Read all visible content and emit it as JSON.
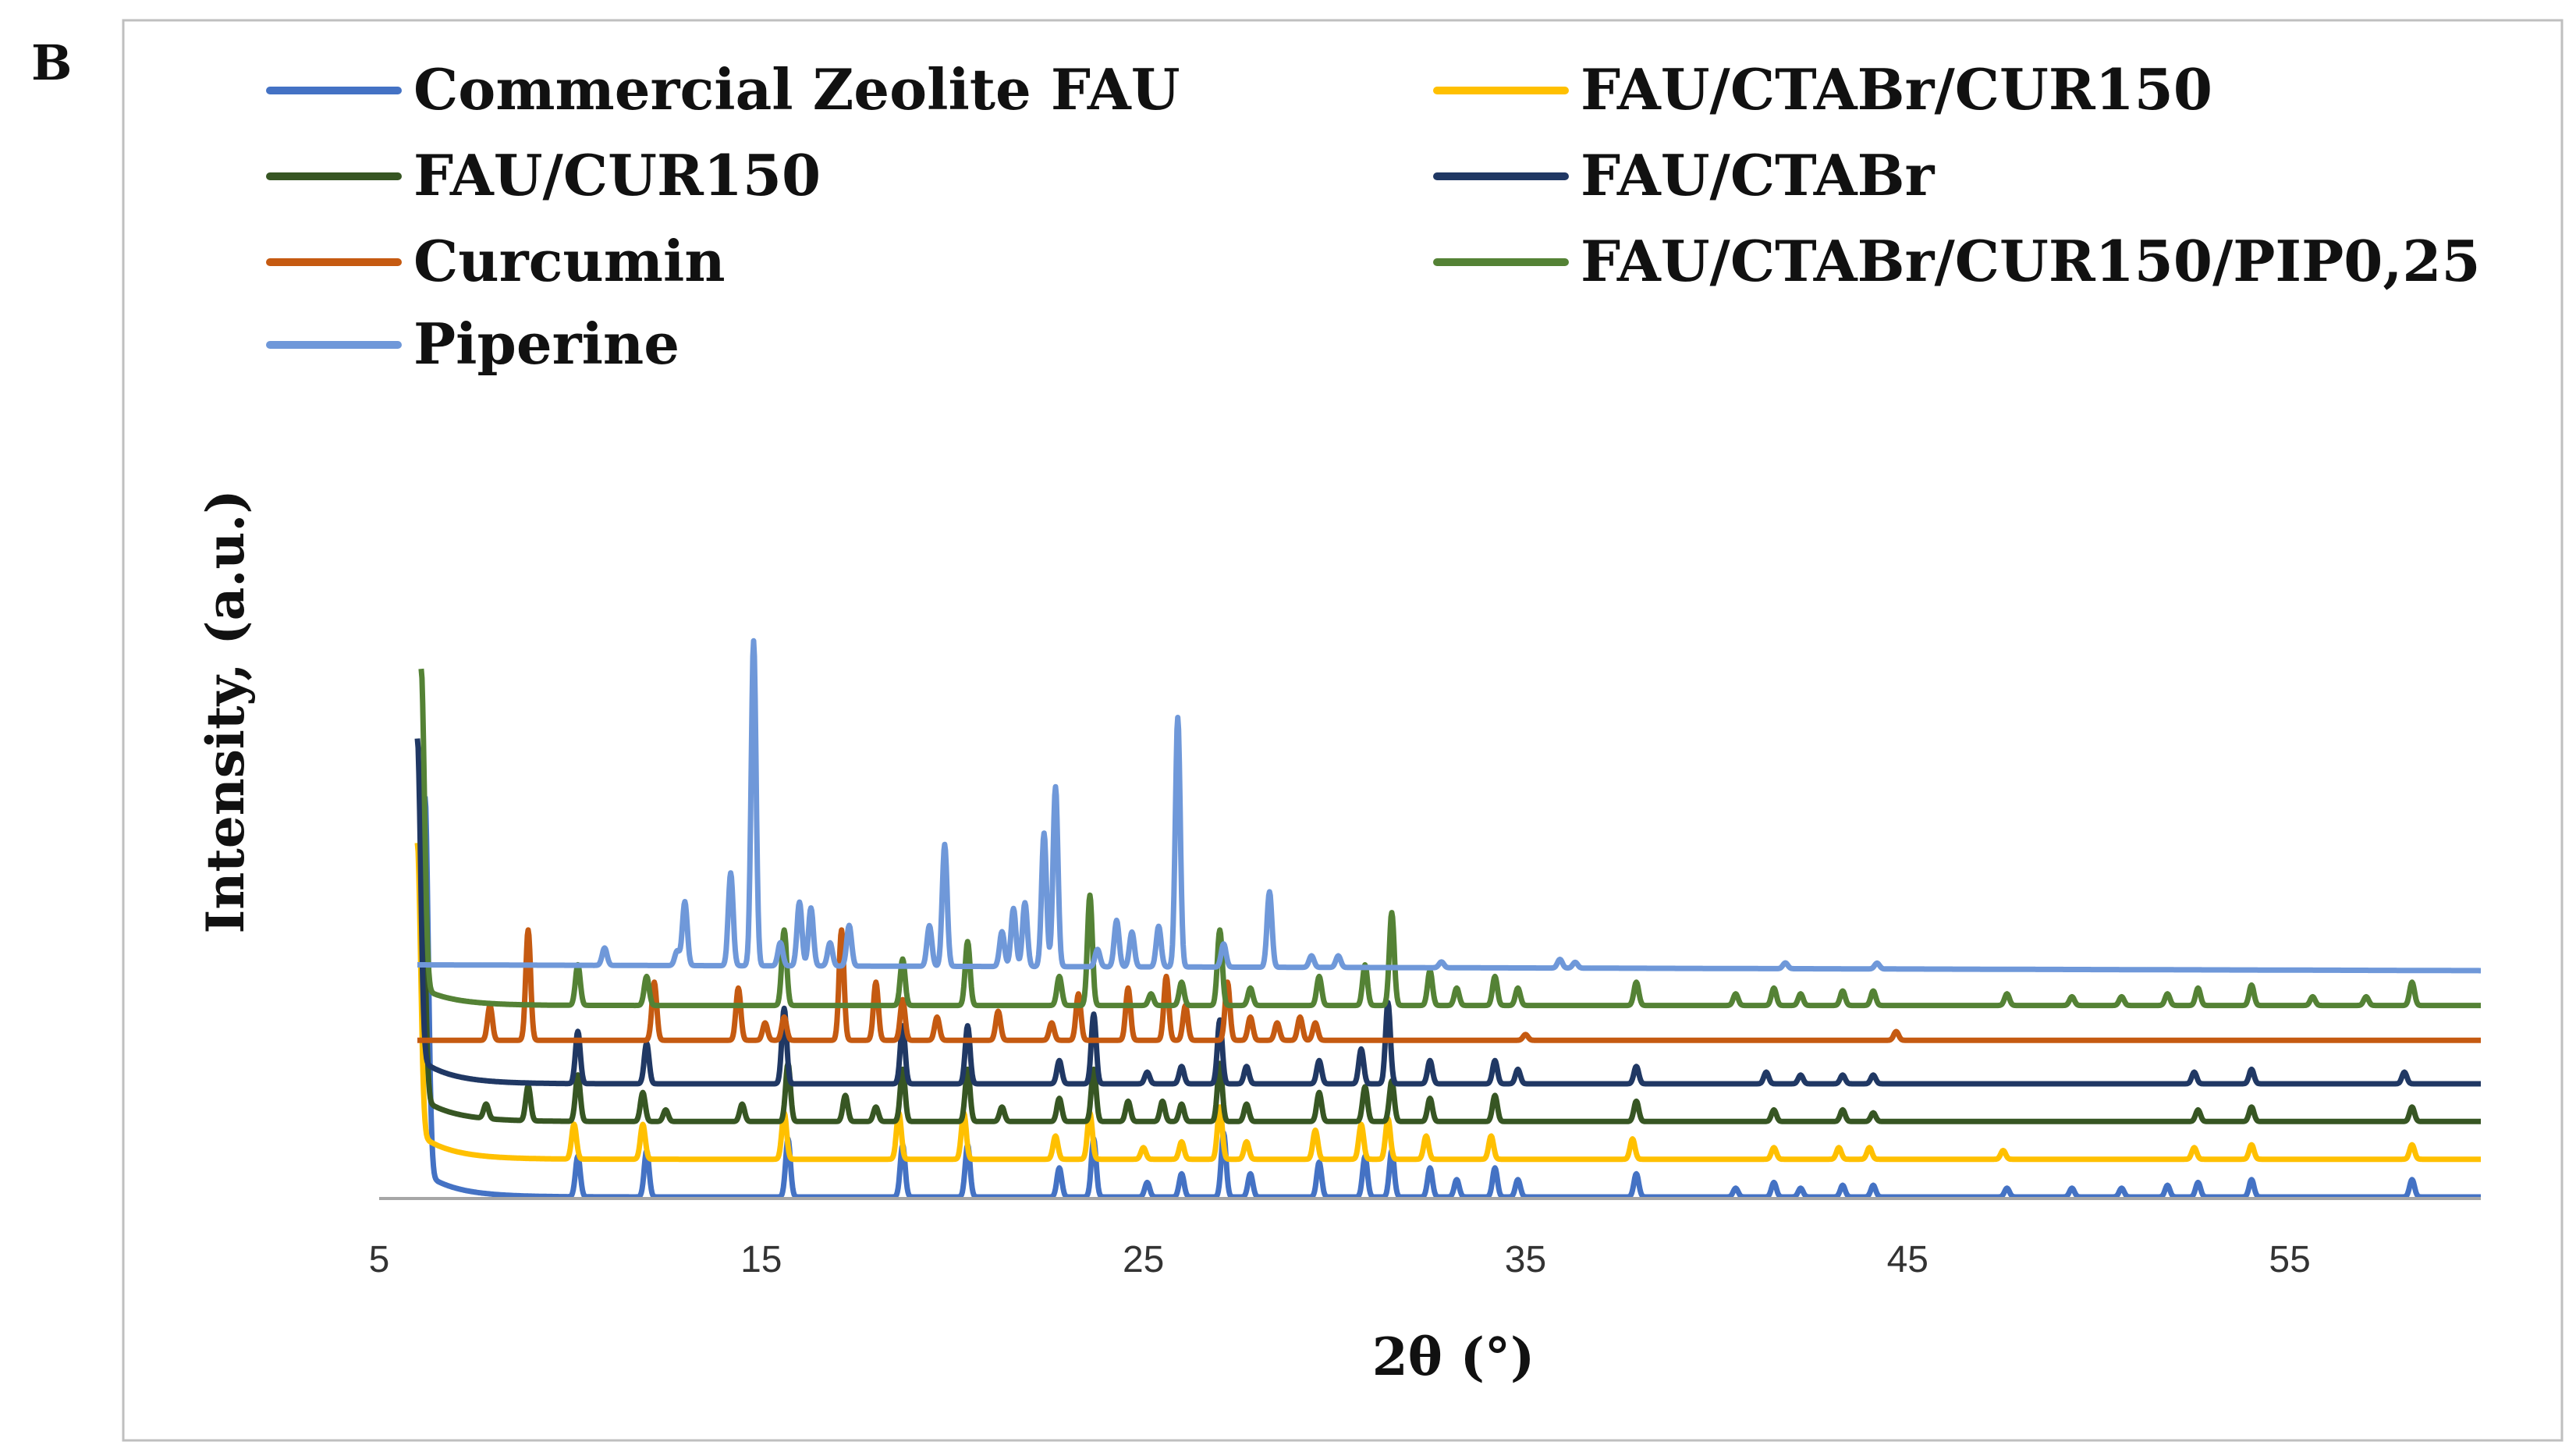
{
  "panel_label": "B",
  "chart_data": {
    "type": "line",
    "xlabel": "2θ (°)",
    "ylabel": "Intensity, (a.u.)",
    "xlim": [
      5,
      60
    ],
    "ylim": [
      0,
      13.5
    ],
    "xticks": [
      5,
      15,
      25,
      35,
      45,
      55
    ],
    "y_ticks_shown": false,
    "grid": false,
    "legend_position": "top",
    "legend_columns": 2,
    "series": [
      {
        "name": "Commercial Zeolite FAU",
        "color": "#4472C4",
        "offset": 0,
        "start_x": 6.2,
        "baseline_start": 0.4,
        "baseline_end": 0,
        "start_spike": 6.5,
        "peaks": [
          [
            10.2,
            0.7
          ],
          [
            12.0,
            0.8
          ],
          [
            15.7,
            1.0
          ],
          [
            18.7,
            0.9
          ],
          [
            20.4,
            0.9
          ],
          [
            22.8,
            0.5
          ],
          [
            23.7,
            1.0
          ],
          [
            25.1,
            0.25
          ],
          [
            26.0,
            0.4
          ],
          [
            27.1,
            1.1
          ],
          [
            27.8,
            0.4
          ],
          [
            29.6,
            0.6
          ],
          [
            30.8,
            0.7
          ],
          [
            31.5,
            0.8
          ],
          [
            32.5,
            0.5
          ],
          [
            33.2,
            0.3
          ],
          [
            34.2,
            0.5
          ],
          [
            34.8,
            0.3
          ],
          [
            37.9,
            0.4
          ],
          [
            40.5,
            0.15
          ],
          [
            41.5,
            0.25
          ],
          [
            42.2,
            0.15
          ],
          [
            43.3,
            0.2
          ],
          [
            44.1,
            0.2
          ],
          [
            47.6,
            0.15
          ],
          [
            49.3,
            0.15
          ],
          [
            50.6,
            0.15
          ],
          [
            51.8,
            0.2
          ],
          [
            52.6,
            0.25
          ],
          [
            54.0,
            0.3
          ],
          [
            58.2,
            0.3
          ]
        ]
      },
      {
        "name": "FAU/CTABr/CUR150",
        "color": "#FFC000",
        "offset": 0.65,
        "start_x": 6.0,
        "baseline_start": 0.45,
        "baseline_end": 0,
        "start_spike": 5.0,
        "peaks": [
          [
            10.1,
            0.6
          ],
          [
            11.9,
            0.6
          ],
          [
            15.6,
            0.8
          ],
          [
            18.6,
            0.8
          ],
          [
            20.3,
            0.8
          ],
          [
            22.7,
            0.4
          ],
          [
            23.6,
            0.8
          ],
          [
            25.0,
            0.2
          ],
          [
            26.0,
            0.3
          ],
          [
            27.0,
            0.9
          ],
          [
            27.7,
            0.3
          ],
          [
            29.5,
            0.5
          ],
          [
            30.7,
            0.6
          ],
          [
            31.4,
            0.7
          ],
          [
            32.4,
            0.4
          ],
          [
            34.1,
            0.4
          ],
          [
            37.8,
            0.35
          ],
          [
            41.5,
            0.2
          ],
          [
            43.2,
            0.2
          ],
          [
            44.0,
            0.2
          ],
          [
            47.5,
            0.15
          ],
          [
            52.5,
            0.2
          ],
          [
            54.0,
            0.25
          ],
          [
            58.2,
            0.25
          ]
        ]
      },
      {
        "name": "FAU/CUR150",
        "color": "#375623",
        "offset": 1.3,
        "start_x": 6.1,
        "baseline_start": 0.4,
        "baseline_end": 0,
        "start_spike": 5.6,
        "peaks": [
          [
            7.8,
            0.25
          ],
          [
            8.9,
            0.6
          ],
          [
            10.2,
            0.8
          ],
          [
            11.9,
            0.5
          ],
          [
            12.5,
            0.2
          ],
          [
            14.5,
            0.3
          ],
          [
            15.7,
            1.0
          ],
          [
            17.2,
            0.45
          ],
          [
            18.0,
            0.25
          ],
          [
            18.7,
            0.9
          ],
          [
            20.4,
            0.9
          ],
          [
            21.3,
            0.25
          ],
          [
            22.8,
            0.4
          ],
          [
            23.7,
            0.9
          ],
          [
            24.6,
            0.35
          ],
          [
            25.5,
            0.35
          ],
          [
            26.0,
            0.3
          ],
          [
            27.0,
            1.0
          ],
          [
            27.7,
            0.3
          ],
          [
            29.6,
            0.5
          ],
          [
            30.8,
            0.6
          ],
          [
            31.5,
            0.7
          ],
          [
            32.5,
            0.4
          ],
          [
            34.2,
            0.45
          ],
          [
            37.9,
            0.35
          ],
          [
            41.5,
            0.2
          ],
          [
            43.3,
            0.2
          ],
          [
            44.1,
            0.15
          ],
          [
            52.6,
            0.2
          ],
          [
            54.0,
            0.25
          ],
          [
            58.2,
            0.25
          ]
        ]
      },
      {
        "name": "FAU/CTABr",
        "color": "#203864",
        "offset": 1.95,
        "start_x": 6.0,
        "baseline_start": 0.45,
        "baseline_end": 0,
        "start_spike": 5.5,
        "peaks": [
          [
            10.2,
            0.9
          ],
          [
            12.0,
            0.7
          ],
          [
            15.6,
            1.3
          ],
          [
            18.7,
            1.0
          ],
          [
            20.4,
            1.0
          ],
          [
            22.8,
            0.4
          ],
          [
            23.7,
            1.2
          ],
          [
            25.1,
            0.2
          ],
          [
            26.0,
            0.3
          ],
          [
            27.0,
            1.1
          ],
          [
            27.7,
            0.3
          ],
          [
            29.6,
            0.4
          ],
          [
            30.7,
            0.6
          ],
          [
            31.4,
            1.4
          ],
          [
            32.5,
            0.4
          ],
          [
            34.2,
            0.4
          ],
          [
            34.8,
            0.25
          ],
          [
            37.9,
            0.3
          ],
          [
            41.3,
            0.2
          ],
          [
            42.2,
            0.15
          ],
          [
            43.3,
            0.15
          ],
          [
            44.1,
            0.15
          ],
          [
            52.5,
            0.2
          ],
          [
            54.0,
            0.25
          ],
          [
            58.0,
            0.2
          ]
        ]
      },
      {
        "name": "Curcumin",
        "color": "#C55A11",
        "offset": 2.7,
        "start_x": 6.0,
        "baseline_start": 0,
        "baseline_end": 0,
        "start_spike": 0,
        "peaks": [
          [
            7.9,
            0.6
          ],
          [
            8.9,
            1.9
          ],
          [
            12.2,
            1.0
          ],
          [
            14.4,
            0.9
          ],
          [
            15.1,
            0.3
          ],
          [
            15.6,
            0.4
          ],
          [
            17.1,
            1.9
          ],
          [
            18.0,
            1.0
          ],
          [
            18.7,
            0.7
          ],
          [
            19.6,
            0.4
          ],
          [
            21.2,
            0.5
          ],
          [
            22.6,
            0.3
          ],
          [
            23.3,
            0.8
          ],
          [
            24.6,
            0.9
          ],
          [
            25.6,
            1.1
          ],
          [
            26.1,
            0.6
          ],
          [
            27.2,
            1.0
          ],
          [
            27.8,
            0.4
          ],
          [
            28.5,
            0.3
          ],
          [
            29.1,
            0.4
          ],
          [
            29.5,
            0.3
          ],
          [
            35.0,
            0.1
          ],
          [
            44.7,
            0.15
          ]
        ]
      },
      {
        "name": "FAU/CTABr/CUR150/PIP0,25",
        "color": "#548235",
        "offset": 3.3,
        "start_x": 6.1,
        "baseline_start": 0.3,
        "baseline_end": 0,
        "start_spike": 5.5,
        "peaks": [
          [
            10.2,
            0.7
          ],
          [
            12.0,
            0.5
          ],
          [
            15.6,
            1.3
          ],
          [
            18.7,
            0.8
          ],
          [
            20.4,
            1.1
          ],
          [
            22.8,
            0.5
          ],
          [
            23.6,
            1.9
          ],
          [
            25.2,
            0.2
          ],
          [
            26.0,
            0.4
          ],
          [
            27.0,
            1.3
          ],
          [
            27.8,
            0.3
          ],
          [
            29.6,
            0.5
          ],
          [
            30.8,
            0.7
          ],
          [
            31.5,
            1.6
          ],
          [
            32.5,
            0.6
          ],
          [
            33.2,
            0.3
          ],
          [
            34.2,
            0.5
          ],
          [
            34.8,
            0.3
          ],
          [
            37.9,
            0.4
          ],
          [
            40.5,
            0.2
          ],
          [
            41.5,
            0.3
          ],
          [
            42.2,
            0.2
          ],
          [
            43.3,
            0.25
          ],
          [
            44.1,
            0.25
          ],
          [
            47.6,
            0.2
          ],
          [
            49.3,
            0.15
          ],
          [
            50.6,
            0.15
          ],
          [
            51.8,
            0.2
          ],
          [
            52.6,
            0.3
          ],
          [
            54.0,
            0.35
          ],
          [
            55.6,
            0.15
          ],
          [
            57.0,
            0.15
          ],
          [
            58.2,
            0.4
          ]
        ]
      },
      {
        "name": "Piperine",
        "color": "#6F98D9",
        "offset": 4.0,
        "start_x": 6.0,
        "baseline_start": 0,
        "baseline_end": -0.1,
        "start_spike": 0,
        "peaks": [
          [
            10.9,
            0.3
          ],
          [
            12.8,
            0.25
          ],
          [
            13.0,
            1.1
          ],
          [
            14.2,
            1.6
          ],
          [
            14.8,
            5.6
          ],
          [
            15.5,
            0.4
          ],
          [
            16.0,
            1.1
          ],
          [
            16.3,
            1.0
          ],
          [
            16.8,
            0.4
          ],
          [
            17.3,
            0.7
          ],
          [
            19.4,
            0.7
          ],
          [
            19.8,
            2.1
          ],
          [
            21.3,
            0.6
          ],
          [
            21.6,
            1.0
          ],
          [
            21.9,
            1.1
          ],
          [
            22.4,
            2.3
          ],
          [
            22.7,
            3.1
          ],
          [
            23.8,
            0.3
          ],
          [
            24.3,
            0.8
          ],
          [
            24.7,
            0.6
          ],
          [
            25.4,
            0.7
          ],
          [
            25.9,
            4.3
          ],
          [
            27.1,
            0.4
          ],
          [
            28.3,
            1.3
          ],
          [
            29.4,
            0.2
          ],
          [
            30.1,
            0.2
          ],
          [
            32.8,
            0.1
          ],
          [
            35.9,
            0.15
          ],
          [
            36.3,
            0.1
          ],
          [
            41.8,
            0.1
          ],
          [
            44.2,
            0.1
          ]
        ]
      }
    ]
  }
}
